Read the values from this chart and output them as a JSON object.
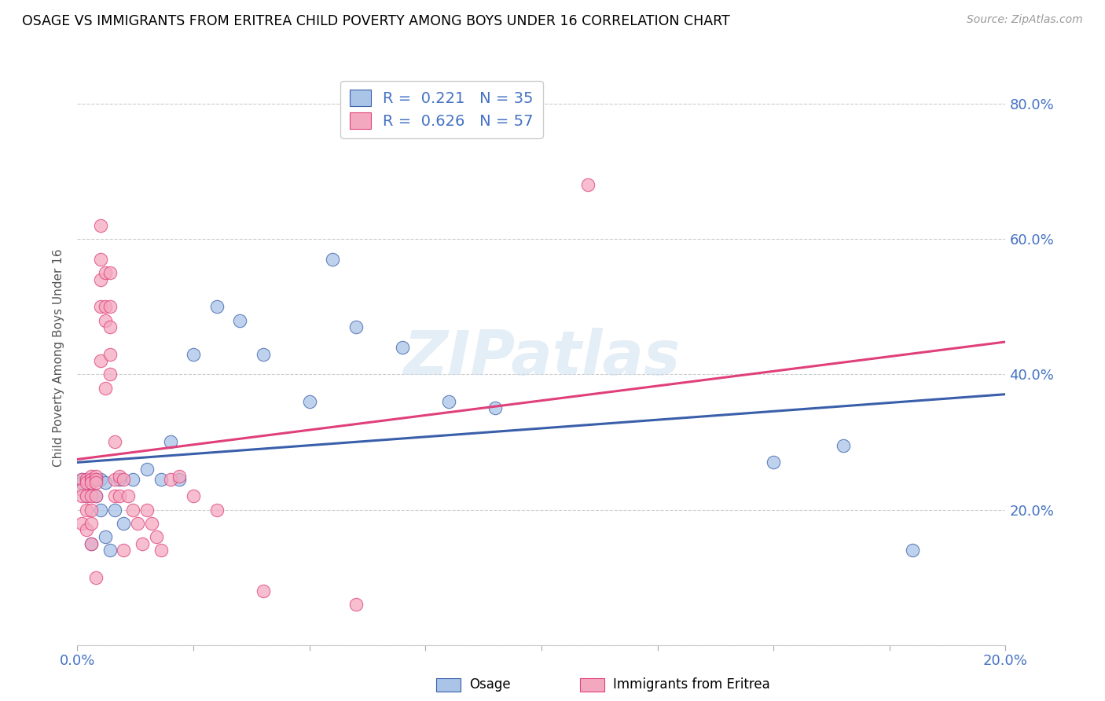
{
  "title": "OSAGE VS IMMIGRANTS FROM ERITREA CHILD POVERTY AMONG BOYS UNDER 16 CORRELATION CHART",
  "source": "Source: ZipAtlas.com",
  "ylabel": "Child Poverty Among Boys Under 16",
  "xlim": [
    0.0,
    0.2
  ],
  "ylim": [
    0.0,
    0.85
  ],
  "watermark": "ZIPatlas",
  "color_osage": "#aac4e8",
  "color_eritrea": "#f4a8c0",
  "line_color_osage": "#3a5faa",
  "line_color_eritrea": "#e0407a",
  "osage_x": [
    0.001,
    0.001,
    0.002,
    0.002,
    0.003,
    0.003,
    0.003,
    0.004,
    0.004,
    0.005,
    0.005,
    0.006,
    0.006,
    0.007,
    0.008,
    0.009,
    0.01,
    0.012,
    0.015,
    0.018,
    0.02,
    0.022,
    0.025,
    0.03,
    0.035,
    0.04,
    0.05,
    0.055,
    0.06,
    0.07,
    0.08,
    0.09,
    0.15,
    0.165,
    0.18
  ],
  "osage_y": [
    0.245,
    0.24,
    0.245,
    0.22,
    0.245,
    0.24,
    0.15,
    0.245,
    0.22,
    0.245,
    0.2,
    0.24,
    0.16,
    0.14,
    0.2,
    0.245,
    0.18,
    0.245,
    0.26,
    0.245,
    0.3,
    0.245,
    0.43,
    0.5,
    0.48,
    0.43,
    0.36,
    0.57,
    0.47,
    0.44,
    0.36,
    0.35,
    0.27,
    0.295,
    0.14
  ],
  "eritrea_x": [
    0.001,
    0.001,
    0.001,
    0.001,
    0.002,
    0.002,
    0.002,
    0.002,
    0.002,
    0.003,
    0.003,
    0.003,
    0.003,
    0.003,
    0.003,
    0.003,
    0.004,
    0.004,
    0.004,
    0.004,
    0.004,
    0.005,
    0.005,
    0.005,
    0.005,
    0.005,
    0.006,
    0.006,
    0.006,
    0.006,
    0.007,
    0.007,
    0.007,
    0.007,
    0.007,
    0.008,
    0.008,
    0.008,
    0.009,
    0.009,
    0.01,
    0.01,
    0.011,
    0.012,
    0.013,
    0.014,
    0.015,
    0.016,
    0.017,
    0.018,
    0.02,
    0.022,
    0.025,
    0.03,
    0.04,
    0.06,
    0.11
  ],
  "eritrea_y": [
    0.245,
    0.23,
    0.22,
    0.18,
    0.245,
    0.24,
    0.22,
    0.2,
    0.17,
    0.25,
    0.245,
    0.24,
    0.22,
    0.2,
    0.18,
    0.15,
    0.25,
    0.245,
    0.24,
    0.22,
    0.1,
    0.62,
    0.57,
    0.54,
    0.5,
    0.42,
    0.55,
    0.5,
    0.48,
    0.38,
    0.55,
    0.5,
    0.47,
    0.43,
    0.4,
    0.3,
    0.245,
    0.22,
    0.25,
    0.22,
    0.245,
    0.14,
    0.22,
    0.2,
    0.18,
    0.15,
    0.2,
    0.18,
    0.16,
    0.14,
    0.245,
    0.25,
    0.22,
    0.2,
    0.08,
    0.06,
    0.68
  ]
}
